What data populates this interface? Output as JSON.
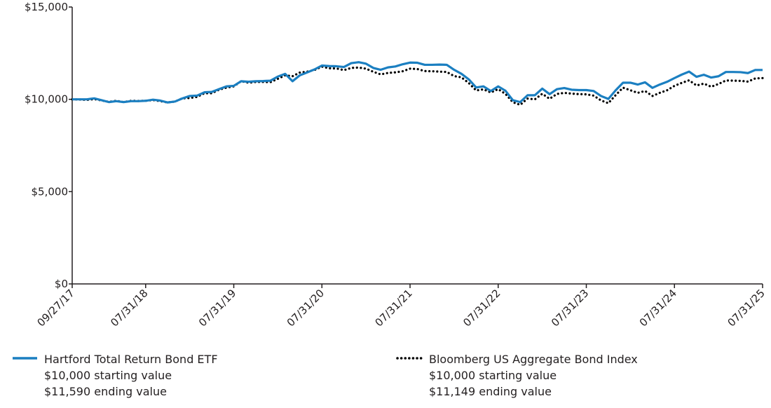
{
  "chart_data": {
    "type": "line",
    "x": [
      "2017-09",
      "2017-10",
      "2017-11",
      "2017-12",
      "2018-01",
      "2018-02",
      "2018-03",
      "2018-04",
      "2018-05",
      "2018-06",
      "2018-07",
      "2018-08",
      "2018-09",
      "2018-10",
      "2018-11",
      "2018-12",
      "2019-01",
      "2019-02",
      "2019-03",
      "2019-04",
      "2019-05",
      "2019-06",
      "2019-07",
      "2019-08",
      "2019-09",
      "2019-10",
      "2019-11",
      "2019-12",
      "2020-01",
      "2020-02",
      "2020-03",
      "2020-04",
      "2020-05",
      "2020-06",
      "2020-07",
      "2020-08",
      "2020-09",
      "2020-10",
      "2020-11",
      "2020-12",
      "2021-01",
      "2021-02",
      "2021-03",
      "2021-04",
      "2021-05",
      "2021-06",
      "2021-07",
      "2021-08",
      "2021-09",
      "2021-10",
      "2021-11",
      "2021-12",
      "2022-01",
      "2022-02",
      "2022-03",
      "2022-04",
      "2022-05",
      "2022-06",
      "2022-07",
      "2022-08",
      "2022-09",
      "2022-10",
      "2022-11",
      "2022-12",
      "2023-01",
      "2023-02",
      "2023-03",
      "2023-04",
      "2023-05",
      "2023-06",
      "2023-07",
      "2023-08",
      "2023-09",
      "2023-10",
      "2023-11",
      "2023-12",
      "2024-01",
      "2024-02",
      "2024-03",
      "2024-04",
      "2024-05",
      "2024-06",
      "2024-07",
      "2024-08",
      "2024-09",
      "2024-10",
      "2024-11",
      "2024-12",
      "2025-01",
      "2025-02",
      "2025-03",
      "2025-04",
      "2025-05",
      "2025-06",
      "2025-07"
    ],
    "series": [
      {
        "name": "Hartford Total Return Bond ETF",
        "color": "#1b7fc1",
        "style": "solid",
        "legend_lines": [
          "$10,000 starting value",
          "$11,590 ending value"
        ],
        "values": [
          10000,
          10000,
          10000,
          10050,
          9950,
          9850,
          9900,
          9850,
          9900,
          9900,
          9920,
          9980,
          9930,
          9830,
          9880,
          10050,
          10180,
          10200,
          10380,
          10400,
          10550,
          10700,
          10730,
          10980,
          10950,
          10980,
          10990,
          11010,
          11230,
          11380,
          10980,
          11300,
          11460,
          11620,
          11830,
          11800,
          11790,
          11750,
          11960,
          12010,
          11930,
          11700,
          11600,
          11730,
          11780,
          11900,
          11990,
          11980,
          11870,
          11870,
          11880,
          11870,
          11600,
          11380,
          11080,
          10640,
          10700,
          10450,
          10700,
          10460,
          9950,
          9850,
          10220,
          10220,
          10580,
          10280,
          10550,
          10610,
          10520,
          10500,
          10500,
          10450,
          10180,
          10020,
          10490,
          10900,
          10900,
          10800,
          10920,
          10620,
          10800,
          10950,
          11150,
          11340,
          11500,
          11220,
          11330,
          11180,
          11250,
          11480,
          11480,
          11470,
          11420,
          11590,
          11590
        ]
      },
      {
        "name": "Bloomberg US Aggregate Bond Index",
        "color": "#000000",
        "style": "dotted",
        "legend_lines": [
          "$10,000 starting value",
          "$11,149 ending value"
        ],
        "values": [
          10000,
          9990,
          9970,
          10010,
          9940,
          9860,
          9920,
          9850,
          9920,
          9910,
          9920,
          9960,
          9900,
          9830,
          9880,
          10050,
          10070,
          10130,
          10330,
          10330,
          10520,
          10630,
          10700,
          10980,
          10900,
          10940,
          10940,
          10930,
          11110,
          11300,
          11250,
          11450,
          11500,
          11590,
          11770,
          11680,
          11670,
          11580,
          11700,
          11720,
          11660,
          11490,
          11350,
          11430,
          11460,
          11520,
          11660,
          11640,
          11530,
          11520,
          11500,
          11480,
          11260,
          11190,
          10880,
          10480,
          10540,
          10370,
          10550,
          10290,
          9840,
          9700,
          10040,
          10000,
          10300,
          10030,
          10290,
          10350,
          10310,
          10280,
          10270,
          10200,
          9940,
          9790,
          10230,
          10630,
          10490,
          10350,
          10450,
          10180,
          10350,
          10490,
          10730,
          10890,
          11030,
          10750,
          10850,
          10680,
          10830,
          11020,
          11010,
          11000,
          10960,
          11130,
          11149
        ]
      }
    ],
    "xlim": [
      "2017-09",
      "2025-07"
    ],
    "xticks": [
      {
        "value": "2017-09",
        "label": "09/27/17"
      },
      {
        "value": "2018-07",
        "label": "07/31/18"
      },
      {
        "value": "2019-07",
        "label": "07/31/19"
      },
      {
        "value": "2020-07",
        "label": "07/31/20"
      },
      {
        "value": "2021-07",
        "label": "07/31/21"
      },
      {
        "value": "2022-07",
        "label": "07/31/22"
      },
      {
        "value": "2023-07",
        "label": "07/31/23"
      },
      {
        "value": "2024-07",
        "label": "07/31/24"
      },
      {
        "value": "2025-07",
        "label": "07/31/25"
      }
    ],
    "ylim": [
      0,
      15000
    ],
    "yticks": [
      {
        "value": 0,
        "label": "$0"
      },
      {
        "value": 5000,
        "label": "$5,000"
      },
      {
        "value": 10000,
        "label": "$10,000"
      },
      {
        "value": 15000,
        "label": "$15,000"
      }
    ],
    "grid": false
  }
}
